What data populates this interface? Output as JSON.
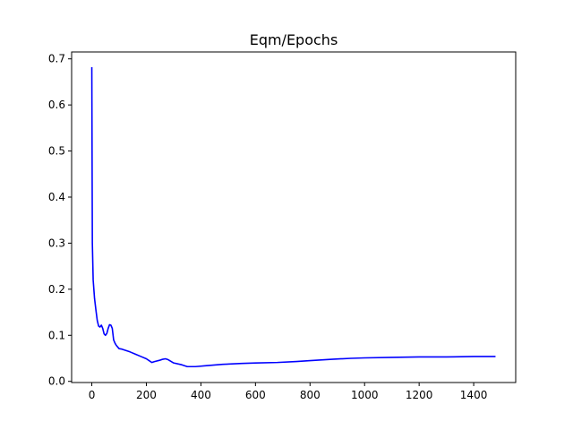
{
  "chart_data": {
    "type": "line",
    "title": "Eqm/Epochs",
    "xlabel": "",
    "ylabel": "",
    "xlim": [
      -74,
      1554
    ],
    "ylim": [
      -0.0025,
      0.715
    ],
    "xticks": [
      0,
      200,
      400,
      600,
      800,
      1000,
      1200,
      1400
    ],
    "yticks": [
      0.0,
      0.1,
      0.2,
      0.3,
      0.4,
      0.5,
      0.6,
      0.7
    ],
    "xtick_labels": [
      "0",
      "200",
      "400",
      "600",
      "800",
      "1000",
      "1200",
      "1400"
    ],
    "ytick_labels": [
      "0.0",
      "0.1",
      "0.2",
      "0.3",
      "0.4",
      "0.5",
      "0.6",
      "0.7"
    ],
    "grid": false,
    "series": [
      {
        "color": "#0000ff",
        "x": [
          0,
          2,
          5,
          10,
          15,
          20,
          25,
          30,
          35,
          40,
          45,
          50,
          55,
          60,
          65,
          70,
          75,
          80,
          85,
          90,
          100,
          110,
          120,
          140,
          160,
          180,
          200,
          210,
          220,
          230,
          250,
          260,
          270,
          280,
          300,
          330,
          350,
          380,
          420,
          480,
          550,
          600,
          680,
          750,
          800,
          880,
          950,
          1000,
          1100,
          1200,
          1300,
          1400,
          1480
        ],
        "y": [
          0.682,
          0.3,
          0.22,
          0.18,
          0.155,
          0.132,
          0.12,
          0.118,
          0.122,
          0.115,
          0.103,
          0.1,
          0.104,
          0.115,
          0.123,
          0.122,
          0.115,
          0.09,
          0.083,
          0.078,
          0.071,
          0.07,
          0.068,
          0.064,
          0.059,
          0.054,
          0.049,
          0.045,
          0.041,
          0.043,
          0.046,
          0.048,
          0.049,
          0.047,
          0.04,
          0.036,
          0.032,
          0.032,
          0.034,
          0.037,
          0.039,
          0.04,
          0.041,
          0.043,
          0.045,
          0.048,
          0.05,
          0.051,
          0.052,
          0.053,
          0.053,
          0.054,
          0.054
        ]
      }
    ]
  }
}
